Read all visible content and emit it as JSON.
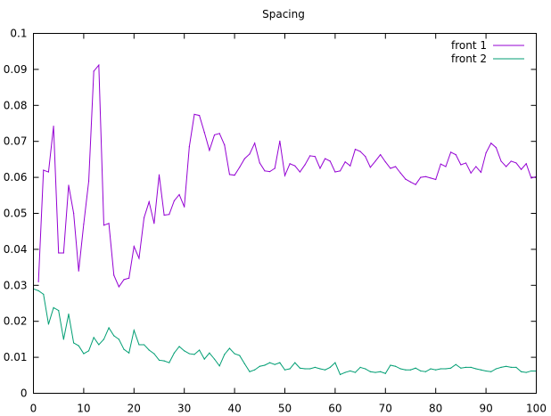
{
  "chart_data": {
    "type": "line",
    "title": "Spacing",
    "xlabel": "",
    "ylabel": "",
    "xlim": [
      0,
      100
    ],
    "ylim": [
      0,
      0.1
    ],
    "xticks": [
      0,
      10,
      20,
      30,
      40,
      50,
      60,
      70,
      80,
      90,
      100
    ],
    "yticks": [
      0,
      0.01,
      0.02,
      0.03,
      0.04,
      0.05,
      0.06,
      0.07,
      0.08,
      0.09,
      0.1
    ],
    "xtick_labels": [
      "0",
      "10",
      "20",
      "30",
      "40",
      "50",
      "60",
      "70",
      "80",
      "90",
      "100"
    ],
    "ytick_labels": [
      "0",
      "0.01",
      "0.02",
      "0.03",
      "0.04",
      "0.05",
      "0.06",
      "0.07",
      "0.08",
      "0.09",
      "0.1"
    ],
    "grid": false,
    "legend_position": "top-right",
    "series": [
      {
        "name": "front 1",
        "color": "#9400d3",
        "x": [
          1,
          2,
          3,
          4,
          5,
          6,
          7,
          8,
          9,
          10,
          11,
          12,
          13,
          14,
          15,
          16,
          17,
          18,
          19,
          20,
          21,
          22,
          23,
          24,
          25,
          26,
          27,
          28,
          29,
          30,
          31,
          32,
          33,
          34,
          35,
          36,
          37,
          38,
          39,
          40,
          41,
          42,
          43,
          44,
          45,
          46,
          47,
          48,
          49,
          50,
          51,
          52,
          53,
          54,
          55,
          56,
          57,
          58,
          59,
          60,
          61,
          62,
          63,
          64,
          65,
          66,
          67,
          68,
          69,
          70,
          71,
          72,
          73,
          74,
          75,
          76,
          77,
          78,
          79,
          80,
          81,
          82,
          83,
          84,
          85,
          86,
          87,
          88,
          89,
          90,
          91,
          92,
          93,
          94,
          95,
          96,
          97,
          98,
          99,
          100
        ],
        "values": [
          0.031,
          0.062,
          0.0615,
          0.0742,
          0.039,
          0.039,
          0.0578,
          0.05,
          0.034,
          0.047,
          0.059,
          0.0895,
          0.0912,
          0.0467,
          0.0472,
          0.0328,
          0.0296,
          0.0316,
          0.032,
          0.0408,
          0.0375,
          0.0488,
          0.0532,
          0.0472,
          0.0607,
          0.0495,
          0.0497,
          0.0535,
          0.0552,
          0.0518,
          0.0685,
          0.0775,
          0.0772,
          0.0725,
          0.0675,
          0.0718,
          0.0722,
          0.069,
          0.0608,
          0.0606,
          0.0628,
          0.0652,
          0.0665,
          0.0695,
          0.064,
          0.0618,
          0.0616,
          0.0625,
          0.0701,
          0.0605,
          0.0638,
          0.0632,
          0.0615,
          0.0635,
          0.066,
          0.0658,
          0.0625,
          0.0652,
          0.0645,
          0.0615,
          0.0618,
          0.0643,
          0.0632,
          0.0678,
          0.0672,
          0.0658,
          0.0628,
          0.0645,
          0.0663,
          0.0643,
          0.0625,
          0.063,
          0.0612,
          0.0595,
          0.0587,
          0.058,
          0.06,
          0.0602,
          0.0598,
          0.0594,
          0.0637,
          0.063,
          0.067,
          0.0663,
          0.0635,
          0.064,
          0.0612,
          0.063,
          0.0614,
          0.0668,
          0.0695,
          0.0683,
          0.0645,
          0.063,
          0.0645,
          0.064,
          0.0622,
          0.0638,
          0.0598,
          0.0602
        ]
      },
      {
        "name": "front 2",
        "color": "#009e73",
        "x": [
          0,
          1,
          2,
          3,
          4,
          5,
          6,
          7,
          8,
          9,
          10,
          11,
          12,
          13,
          14,
          15,
          16,
          17,
          18,
          19,
          20,
          21,
          22,
          23,
          24,
          25,
          26,
          27,
          28,
          29,
          30,
          31,
          32,
          33,
          34,
          35,
          36,
          37,
          38,
          39,
          40,
          41,
          42,
          43,
          44,
          45,
          46,
          47,
          48,
          49,
          50,
          51,
          52,
          53,
          54,
          55,
          56,
          57,
          58,
          59,
          60,
          61,
          62,
          63,
          64,
          65,
          66,
          67,
          68,
          69,
          70,
          71,
          72,
          73,
          74,
          75,
          76,
          77,
          78,
          79,
          80,
          81,
          82,
          83,
          84,
          85,
          86,
          87,
          88,
          89,
          90,
          91,
          92,
          93,
          94,
          95,
          96,
          97,
          98,
          99,
          100
        ],
        "values": [
          0.029,
          0.0285,
          0.0275,
          0.0192,
          0.0238,
          0.023,
          0.015,
          0.022,
          0.014,
          0.0132,
          0.011,
          0.0118,
          0.0155,
          0.0135,
          0.015,
          0.0182,
          0.016,
          0.015,
          0.0122,
          0.0112,
          0.0175,
          0.0135,
          0.0135,
          0.012,
          0.011,
          0.0092,
          0.009,
          0.0085,
          0.0112,
          0.013,
          0.0118,
          0.011,
          0.0108,
          0.012,
          0.0095,
          0.0112,
          0.0095,
          0.0076,
          0.0108,
          0.0125,
          0.011,
          0.0105,
          0.0082,
          0.006,
          0.0065,
          0.0075,
          0.0078,
          0.0085,
          0.008,
          0.0085,
          0.0065,
          0.0068,
          0.0085,
          0.007,
          0.0068,
          0.0068,
          0.0072,
          0.0068,
          0.0065,
          0.0072,
          0.0085,
          0.0052,
          0.0058,
          0.0062,
          0.0058,
          0.0072,
          0.0068,
          0.006,
          0.0058,
          0.006,
          0.0055,
          0.0078,
          0.0075,
          0.0068,
          0.0065,
          0.0065,
          0.007,
          0.0062,
          0.006,
          0.0068,
          0.0065,
          0.0068,
          0.0068,
          0.007,
          0.008,
          0.007,
          0.0072,
          0.0072,
          0.0068,
          0.0065,
          0.0062,
          0.006,
          0.0068,
          0.0072,
          0.0075,
          0.0072,
          0.0072,
          0.006,
          0.0058,
          0.0062,
          0.0062
        ]
      }
    ]
  }
}
